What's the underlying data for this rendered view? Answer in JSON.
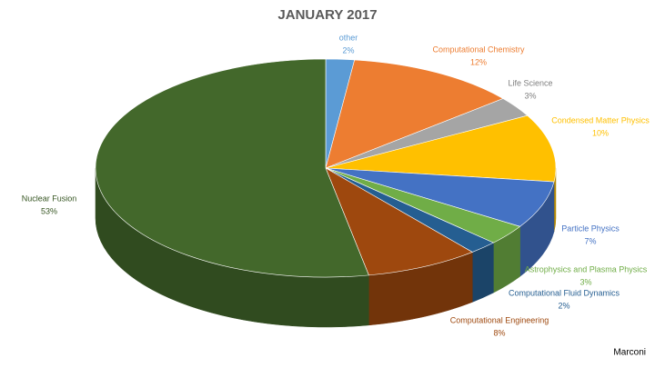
{
  "chart_data": {
    "type": "pie3d",
    "title": "JANUARY 2017",
    "categories": [
      "other",
      "Computational Chemistry",
      "Life Science",
      "Condensed Matter Physics",
      "Particle Physics",
      "Astrophysics and Plasma Physics",
      "Computational Fluid Dynamics",
      "Computational Engineering",
      "Nuclear Fusion"
    ],
    "values": [
      2,
      12,
      3,
      10,
      7,
      3,
      2,
      8,
      53
    ],
    "value_labels": [
      "2%",
      "12%",
      "3%",
      "10%",
      "7%",
      "3%",
      "2%",
      "8%",
      "53%"
    ],
    "colors": [
      "#5b9bd5",
      "#ed7d31",
      "#a5a5a5",
      "#ffc000",
      "#4472c4",
      "#70ad47",
      "#255e91",
      "#9e480e",
      "#43682b"
    ],
    "annotation": "Marconi"
  }
}
